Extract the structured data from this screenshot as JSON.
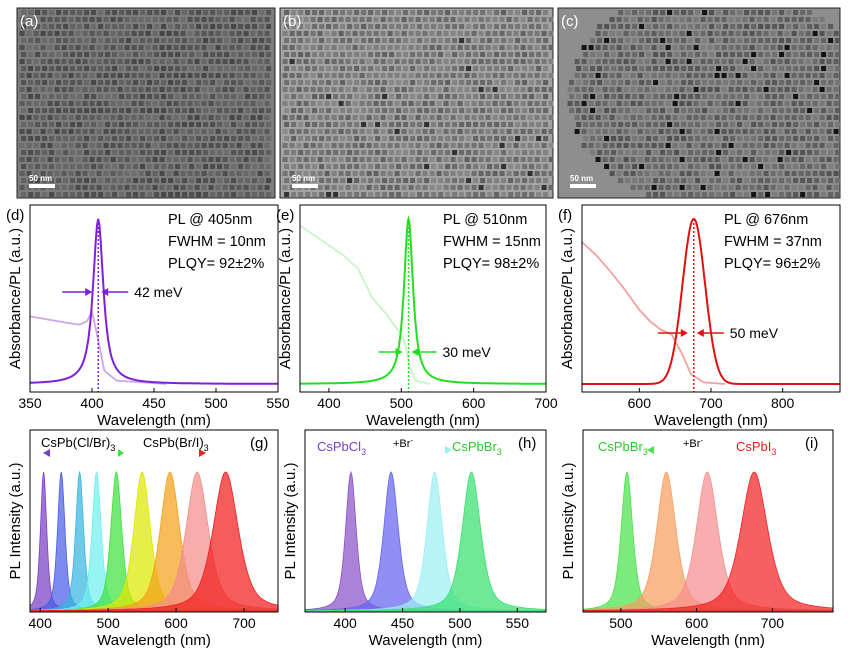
{
  "tem_panels": [
    {
      "label": "(a)",
      "scale_bar": "50 nm",
      "tone": "#7d7d7d"
    },
    {
      "label": "(b)",
      "scale_bar": "50 nm",
      "tone": "#a3a3a3"
    },
    {
      "label": "(c)",
      "scale_bar": "50 nm",
      "tone": "#8e8e8e"
    }
  ],
  "chart_data": [
    {
      "panel": "(d)",
      "type": "line",
      "title": "",
      "xlabel": "Wavelength (nm)",
      "ylabel": "Absorbance/PL (a.u.)",
      "xlim": [
        350,
        550
      ],
      "xticks": [
        350,
        400,
        450,
        500,
        550
      ],
      "series": [
        {
          "name": "Absorbance",
          "color": "#cda6e6",
          "x": [
            350,
            365,
            380,
            390,
            396,
            400,
            404,
            410,
            420,
            440,
            460
          ],
          "y": [
            0.41,
            0.39,
            0.37,
            0.36,
            0.38,
            0.44,
            0.3,
            0.08,
            0.02,
            0.01,
            0.0
          ]
        },
        {
          "name": "PL",
          "color": "#7f1fd6",
          "peak": 405,
          "fwhm_nm": 10
        }
      ],
      "annotations": [
        "PL @ 405nm",
        "FWHM = 10nm",
        "PLQY= 92±2%"
      ],
      "stokes": {
        "label": "42 meV",
        "x": 405
      }
    },
    {
      "panel": "(e)",
      "type": "line",
      "xlabel": "Wavelength (nm)",
      "ylabel": "Absorbance/PL (a.u.)",
      "xlim": [
        360,
        700
      ],
      "xticks": [
        400,
        500,
        600,
        700
      ],
      "series": [
        {
          "name": "Absorbance",
          "color": "#c7f5c7",
          "x": [
            360,
            380,
            400,
            420,
            440,
            460,
            480,
            495,
            500,
            505,
            512,
            520,
            540
          ],
          "y": [
            0.96,
            0.9,
            0.84,
            0.78,
            0.7,
            0.52,
            0.42,
            0.33,
            0.3,
            0.25,
            0.1,
            0.02,
            0.0
          ]
        },
        {
          "name": "PL",
          "color": "#22dd22",
          "peak": 510,
          "fwhm_nm": 15
        }
      ],
      "annotations": [
        "PL @ 510nm",
        "FWHM = 15nm",
        "PLQY= 98±2%"
      ],
      "stokes": {
        "label": "30 meV",
        "x": 510
      }
    },
    {
      "panel": "(f)",
      "type": "line",
      "xlabel": "Wavelength (nm)",
      "ylabel": "Absorbance/PL (a.u.)",
      "xlim": [
        520,
        880
      ],
      "xticks": [
        600,
        700,
        800
      ],
      "series": [
        {
          "name": "Absorbance",
          "color": "#f4a0a0",
          "x": [
            520,
            540,
            560,
            580,
            600,
            615,
            630,
            645,
            660,
            672,
            690,
            720
          ],
          "y": [
            0.86,
            0.78,
            0.68,
            0.57,
            0.45,
            0.38,
            0.33,
            0.3,
            0.18,
            0.06,
            0.01,
            0.0
          ]
        },
        {
          "name": "PL",
          "color": "#e01010",
          "peak": 676,
          "fwhm_nm": 37
        }
      ],
      "annotations": [
        "PL @ 676nm",
        "FWHM = 37nm",
        "PLQY= 96±2%"
      ],
      "stokes": {
        "label": "50 meV",
        "x": 676
      }
    },
    {
      "panel": "(g)",
      "type": "area",
      "xlabel": "Wavelength (nm)",
      "ylabel": "PL Intensity (a.u.)",
      "xlim": [
        385,
        750
      ],
      "xticks": [
        400,
        500,
        600,
        700
      ],
      "series": [
        {
          "peak": 405,
          "fwhm_nm": 11,
          "color": "#7b3fc4"
        },
        {
          "peak": 431,
          "fwhm_nm": 13,
          "color": "#4a5ee6"
        },
        {
          "peak": 458,
          "fwhm_nm": 14,
          "color": "#38b5e0"
        },
        {
          "peak": 483,
          "fwhm_nm": 16,
          "color": "#6ff0ee"
        },
        {
          "peak": 512,
          "fwhm_nm": 19,
          "color": "#3ee03e"
        },
        {
          "peak": 550,
          "fwhm_nm": 29,
          "color": "#dde800"
        },
        {
          "peak": 591,
          "fwhm_nm": 34,
          "color": "#f2a21a"
        },
        {
          "peak": 631,
          "fwhm_nm": 39,
          "color": "#f48c8c"
        },
        {
          "peak": 673,
          "fwhm_nm": 44,
          "color": "#f21d1d"
        }
      ],
      "labels": {
        "left": "CsPb(Cl/Br)",
        "left_sub": "3",
        "right": "CsPb(Br/I)",
        "right_sub": "3"
      }
    },
    {
      "panel": "(h)",
      "type": "area",
      "xlabel": "Wavelength (nm)",
      "ylabel": "PL Intensity (a.u.)",
      "xlim": [
        365,
        575
      ],
      "xticks": [
        400,
        450,
        500,
        550
      ],
      "series": [
        {
          "peak": 405,
          "fwhm_nm": 11,
          "color": "#8a52c7"
        },
        {
          "peak": 440,
          "fwhm_nm": 15,
          "color": "#6565f0"
        },
        {
          "peak": 478,
          "fwhm_nm": 16,
          "color": "#9beff4"
        },
        {
          "peak": 510,
          "fwhm_nm": 19,
          "color": "#38e070"
        }
      ],
      "labels": {
        "left": "CsPbCl",
        "left_sub": "3",
        "arrow": "+Br",
        "arrow_sup": "-",
        "right": "CsPbBr",
        "right_sub": "3"
      }
    },
    {
      "panel": "(i)",
      "type": "area",
      "xlabel": "Wavelength (nm)",
      "ylabel": "PL Intensity (a.u.)",
      "xlim": [
        450,
        780
      ],
      "xticks": [
        500,
        600,
        700
      ],
      "series": [
        {
          "peak": 508,
          "fwhm_nm": 18,
          "color": "#4be24b"
        },
        {
          "peak": 560,
          "fwhm_nm": 30,
          "color": "#f5a060"
        },
        {
          "peak": 614,
          "fwhm_nm": 34,
          "color": "#f58f8f"
        },
        {
          "peak": 676,
          "fwhm_nm": 42,
          "color": "#f22222"
        }
      ],
      "labels": {
        "left": "CsPbBr",
        "left_sub": "3",
        "arrow": "+Br",
        "arrow_sup": "-",
        "right": "CsPbI",
        "right_sub": "3"
      }
    }
  ]
}
